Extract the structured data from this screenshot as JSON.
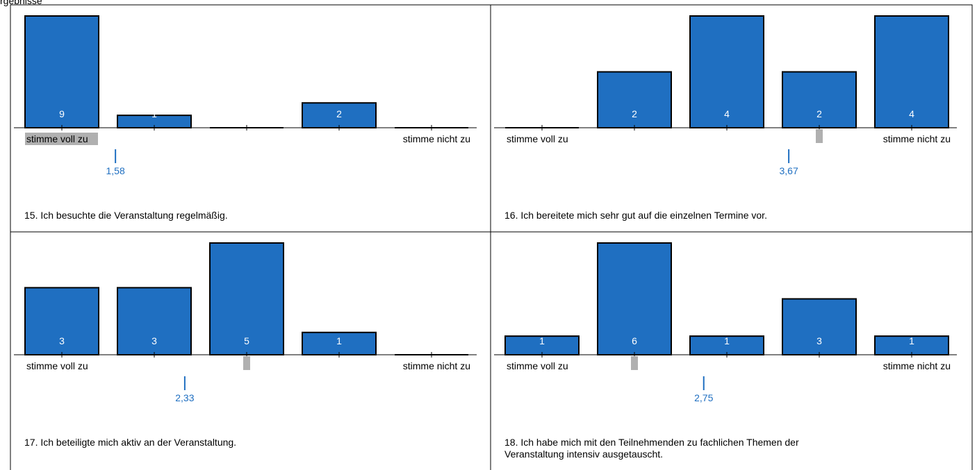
{
  "header": {
    "title": "rgebnisse"
  },
  "colors": {
    "bar": "#1f6fc1",
    "bar_stroke": "#000000",
    "mean": "#1f6fc1",
    "median": "#b0b0b0",
    "label_highlight": "#b0b0b0"
  },
  "chart_data": [
    {
      "type": "bar",
      "categories": [
        "1",
        "2",
        "3",
        "4",
        "5"
      ],
      "values": [
        9,
        1,
        0,
        2,
        0
      ],
      "value_labels": [
        "9",
        "1",
        "",
        "2",
        ""
      ],
      "left_label": "stimme voll zu",
      "right_label": "stimme nicht zu",
      "mean": 1.58,
      "mean_label": "1,58",
      "median_category": 1,
      "left_label_highlight": true,
      "question": "15. Ich besuchte die Veranstaltung regelmäßig.",
      "question_lines": [
        "15. Ich besuchte die Veranstaltung regelmäßig."
      ]
    },
    {
      "type": "bar",
      "categories": [
        "1",
        "2",
        "3",
        "4",
        "5"
      ],
      "values": [
        0,
        2,
        4,
        2,
        4
      ],
      "value_labels": [
        "",
        "2",
        "4",
        "2",
        "4"
      ],
      "left_label": "stimme voll zu",
      "right_label": "stimme nicht zu",
      "mean": 3.67,
      "mean_label": "3,67",
      "median_category": 4,
      "left_label_highlight": false,
      "question": "16. Ich bereitete mich sehr gut auf die einzelnen Termine vor.",
      "question_lines": [
        "16. Ich bereitete mich sehr gut auf die einzelnen Termine vor."
      ]
    },
    {
      "type": "bar",
      "categories": [
        "1",
        "2",
        "3",
        "4",
        "5"
      ],
      "values": [
        3,
        3,
        5,
        1,
        0
      ],
      "value_labels": [
        "3",
        "3",
        "5",
        "1",
        ""
      ],
      "left_label": "stimme voll zu",
      "right_label": "stimme nicht zu",
      "mean": 2.33,
      "mean_label": "2,33",
      "median_category": 3,
      "left_label_highlight": false,
      "question": "17. Ich beteiligte mich aktiv an der Veranstaltung.",
      "question_lines": [
        "17. Ich beteiligte mich aktiv an der Veranstaltung."
      ]
    },
    {
      "type": "bar",
      "categories": [
        "1",
        "2",
        "3",
        "4",
        "5"
      ],
      "values": [
        1,
        6,
        1,
        3,
        1
      ],
      "value_labels": [
        "1",
        "6",
        "1",
        "3",
        "1"
      ],
      "left_label": "stimme voll zu",
      "right_label": "stimme nicht zu",
      "mean": 2.75,
      "mean_label": "2,75",
      "median_category": 2,
      "left_label_highlight": false,
      "question": "18. Ich habe mich mit den Teilnehmenden zu fachlichen Themen der Veranstaltung intensiv ausgetauscht.",
      "question_lines": [
        "18. Ich habe mich mit den Teilnehmenden zu fachlichen Themen der",
        "Veranstaltung intensiv ausgetauscht."
      ]
    }
  ]
}
